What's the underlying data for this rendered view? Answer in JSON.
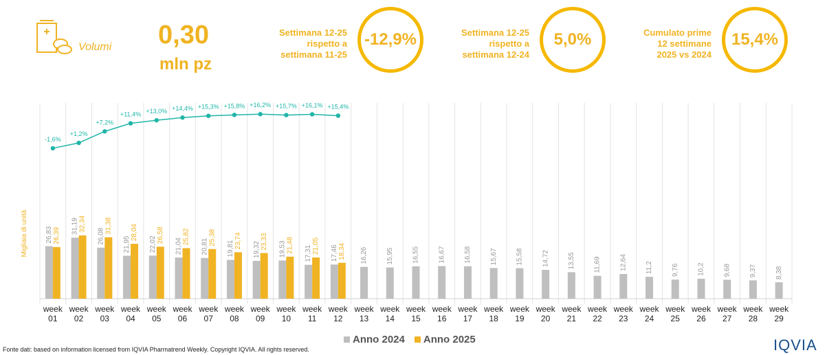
{
  "header": {
    "kpi_label": "Volumi",
    "kpi_value": "0,30",
    "kpi_unit": "mln pz",
    "comparisons": [
      {
        "label": [
          "Settimana 12-25",
          "rispetto a",
          "settimana 11-25"
        ],
        "value": "-12,9%"
      },
      {
        "label": [
          "Settimana 12-25",
          "rispetto a",
          "settimana 12-24"
        ],
        "value": "5,0%"
      },
      {
        "label": [
          "Cumulato prime",
          "12 settimane",
          "2025 vs 2024"
        ],
        "value": "15,4%"
      }
    ]
  },
  "chart_data": {
    "type": "bar",
    "y_label": "Migliaia di unità",
    "categories": [
      "week 01",
      "week 02",
      "week 03",
      "week 04",
      "week 05",
      "week 06",
      "week 07",
      "week 08",
      "week 09",
      "week 10",
      "week 11",
      "week 12",
      "week 13",
      "week 14",
      "week 15",
      "week 16",
      "week 17",
      "week 18",
      "week 19",
      "week 20",
      "week 21",
      "week 22",
      "week 23",
      "week 24",
      "week 25",
      "week 26",
      "week 27",
      "week 28",
      "week 29"
    ],
    "ylim": [
      0,
      100
    ],
    "y2lim": [
      -80,
      22
    ],
    "series": [
      {
        "name": "Anno 2024",
        "color": "#bfbfbf",
        "values": [
          26.83,
          31.19,
          26.08,
          21.95,
          22.02,
          21.04,
          20.81,
          19.81,
          19.32,
          19.53,
          17.31,
          17.46,
          16.26,
          15.95,
          16.55,
          16.67,
          16.58,
          15.67,
          15.58,
          14.72,
          13.55,
          11.69,
          12.64,
          11.2,
          9.76,
          10.2,
          9.68,
          9.37,
          8.38
        ],
        "value_labels": [
          "26,83",
          "31,19",
          "26,08",
          "21,95",
          "22,02",
          "21,04",
          "20,81",
          "19,81",
          "19,32",
          "19,53",
          "17,31",
          "17,46",
          "16,26",
          "15,95",
          "16,55",
          "16,67",
          "16,58",
          "15,67",
          "15,58",
          "14,72",
          "13,55",
          "11,69",
          "12,64",
          "11,2",
          "9,76",
          "10,2",
          "9,68",
          "9,37",
          "8,38"
        ]
      },
      {
        "name": "Anno 2025",
        "color": "#f0b323",
        "values": [
          26.39,
          32.34,
          31.38,
          28.04,
          26.58,
          25.82,
          25.38,
          23.74,
          23.33,
          21.48,
          21.05,
          18.34,
          null,
          null,
          null,
          null,
          null,
          null,
          null,
          null,
          null,
          null,
          null,
          null,
          null,
          null,
          null,
          null,
          null
        ],
        "value_labels": [
          "26,39",
          "32,34",
          "31,38",
          "28,04",
          "26,58",
          "25,82",
          "25,38",
          "23,74",
          "23,33",
          "21,48",
          "21,05",
          "18,34",
          null,
          null,
          null,
          null,
          null,
          null,
          null,
          null,
          null,
          null,
          null,
          null,
          null,
          null,
          null,
          null,
          null
        ]
      },
      {
        "type": "line",
        "axis": "y2",
        "color": "#1fb5a8",
        "values": [
          -1.6,
          1.2,
          7.2,
          11.4,
          13.0,
          14.4,
          15.3,
          15.8,
          16.2,
          15.7,
          16.1,
          15.4,
          null,
          null,
          null,
          null,
          null,
          null,
          null,
          null,
          null,
          null,
          null,
          null,
          null,
          null,
          null,
          null,
          null
        ],
        "value_labels": [
          "-1,6%",
          "+1,2%",
          "+7,2%",
          "+11,4%",
          "+13,0%",
          "+14,4%",
          "+15,3%",
          "+15,8%",
          "+16,2%",
          "+15,7%",
          "+16,1%",
          "+15,4%",
          null,
          null,
          null,
          null,
          null,
          null,
          null,
          null,
          null,
          null,
          null,
          null,
          null,
          null,
          null,
          null,
          null
        ]
      }
    ]
  },
  "footer": {
    "source": "Fonte dati: based on information licensed from IQVIA Pharmatrend Weekly. Copyright IQVIA. All rights reserved.",
    "logo": "IQVIA"
  }
}
